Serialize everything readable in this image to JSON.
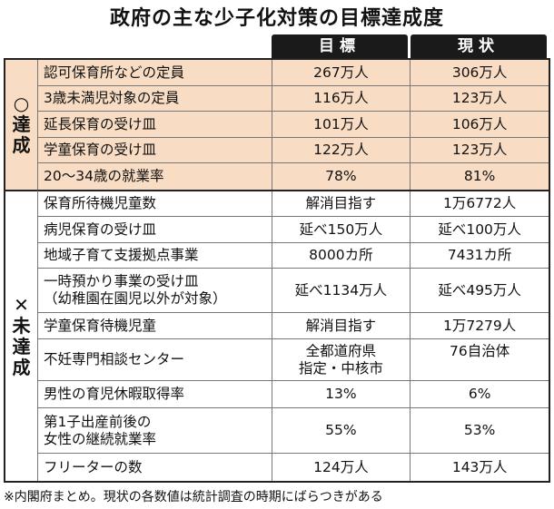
{
  "title": "政府の主な少子化対策の目標達成度",
  "columns": {
    "target": "目標",
    "current": "現状"
  },
  "categories": {
    "achieved": {
      "symbol": "○",
      "label_chars": [
        "達",
        "成"
      ]
    },
    "not_achieved": {
      "symbol": "✕",
      "label_chars": [
        "未",
        "達",
        "成"
      ]
    }
  },
  "rows": [
    {
      "label": "認可保育所などの定員",
      "target": "267万人",
      "current": "306万人"
    },
    {
      "label": "3歳未満児対象の定員",
      "target": "116万人",
      "current": "123万人"
    },
    {
      "label": "延長保育の受け皿",
      "target": "101万人",
      "current": "106万人"
    },
    {
      "label": "学童保育の受け皿",
      "target": "122万人",
      "current": "123万人"
    },
    {
      "label": "20～34歳の就業率",
      "target": "78%",
      "current": "81%"
    },
    {
      "label": "保育所待機児童数",
      "target": "解消目指す",
      "current": "1万6772人"
    },
    {
      "label": "病児保育の受け皿",
      "target": "延べ150万人",
      "current": "延べ100万人"
    },
    {
      "label": "地域子育て支援拠点事業",
      "target": "8000カ所",
      "current": "7431カ所"
    },
    {
      "label": "一時預かり事業の受け皿",
      "label2": "（幼稚園在園児以外が対象）",
      "target": "延べ1134万人",
      "current": "延べ495万人"
    },
    {
      "label": "学童保育待機児童",
      "target": "解消目指す",
      "current": "1万7279人"
    },
    {
      "label": "不妊専門相談センター",
      "target": "全都道府県",
      "target2": "指定・中核市",
      "current": "76自治体"
    },
    {
      "label": "男性の育児休暇取得率",
      "target": "13%",
      "current": "6%"
    },
    {
      "label": "第1子出産前後の",
      "label2": "女性の継続就業率",
      "target": "55%",
      "current": "53%"
    },
    {
      "label": "フリーターの数",
      "target": "124万人",
      "current": "143万人"
    }
  ],
  "note": "※内閣府まとめ。現状の各数値は統計調査の時期にばらつきがある"
}
